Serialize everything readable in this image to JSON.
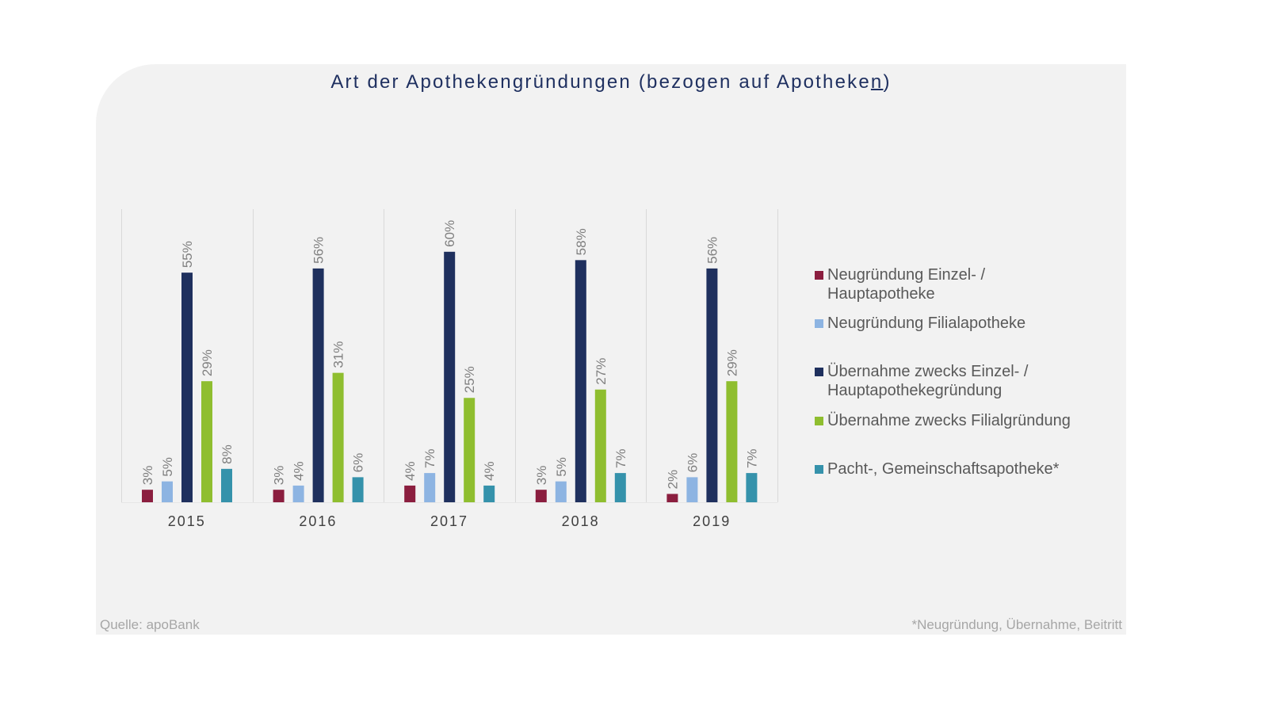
{
  "chart_data": {
    "type": "bar",
    "title": "Art der Apothekengründungen (bezogen auf Apotheken)",
    "title_main": "Art der Apothekengründungen (bezogen auf Apotheke",
    "title_underlined": "n",
    "title_end": ")",
    "xlabel": "",
    "ylabel": "",
    "ylim": [
      0,
      70
    ],
    "grid": false,
    "legend_position": "right",
    "categories": [
      "2015",
      "2016",
      "2017",
      "2018",
      "2019"
    ],
    "series": [
      {
        "name": "Neugründung Einzel- / Hauptapotheke",
        "name_lines": [
          "Neugründung Einzel- /",
          "Hauptapotheke"
        ],
        "color": "#8b1e3f",
        "values": [
          3,
          3,
          4,
          3,
          2
        ],
        "labels": [
          "3%",
          "3%",
          "4%",
          "3%",
          "2%"
        ]
      },
      {
        "name": "Neugründung Filialapotheke",
        "name_lines": [
          "Neugründung Filialapotheke"
        ],
        "color": "#8db4e2",
        "values": [
          5,
          4,
          7,
          5,
          6
        ],
        "labels": [
          "5%",
          "4%",
          "7%",
          "5%",
          "6%"
        ]
      },
      {
        "name": "Übernahme zwecks Einzel- / Hauptapothekegründung",
        "name_lines": [
          "Übernahme zwecks Einzel- /",
          "Hauptapothekegründung"
        ],
        "color": "#1f305e",
        "values": [
          55,
          56,
          60,
          58,
          56
        ],
        "labels": [
          "55%",
          "56%",
          "60%",
          "58%",
          "56%"
        ]
      },
      {
        "name": "Übernahme zwecks Filialgründung",
        "name_lines": [
          "Übernahme zwecks Filialgründung"
        ],
        "color": "#8fbe2f",
        "values": [
          29,
          31,
          25,
          27,
          29
        ],
        "labels": [
          "29%",
          "31%",
          "25%",
          "27%",
          "29%"
        ]
      },
      {
        "name": "Pacht-, Gemeinschaftsapotheke*",
        "name_lines": [
          "Pacht-, Gemeinschaftsapotheke*"
        ],
        "color": "#3592ab",
        "values": [
          8,
          6,
          4,
          7,
          7
        ],
        "labels": [
          "8%",
          "6%",
          "4%",
          "7%",
          "7%"
        ]
      }
    ],
    "colors": {
      "title": "#1f3060",
      "data_label": "#7f7f7f",
      "axis_label": "#404040",
      "separator": "#d9d9d9",
      "panel": "#f2f2f2"
    }
  },
  "footer": {
    "source": "Quelle: apoBank",
    "note": "*Neugründung, Übernahme, Beitritt"
  }
}
